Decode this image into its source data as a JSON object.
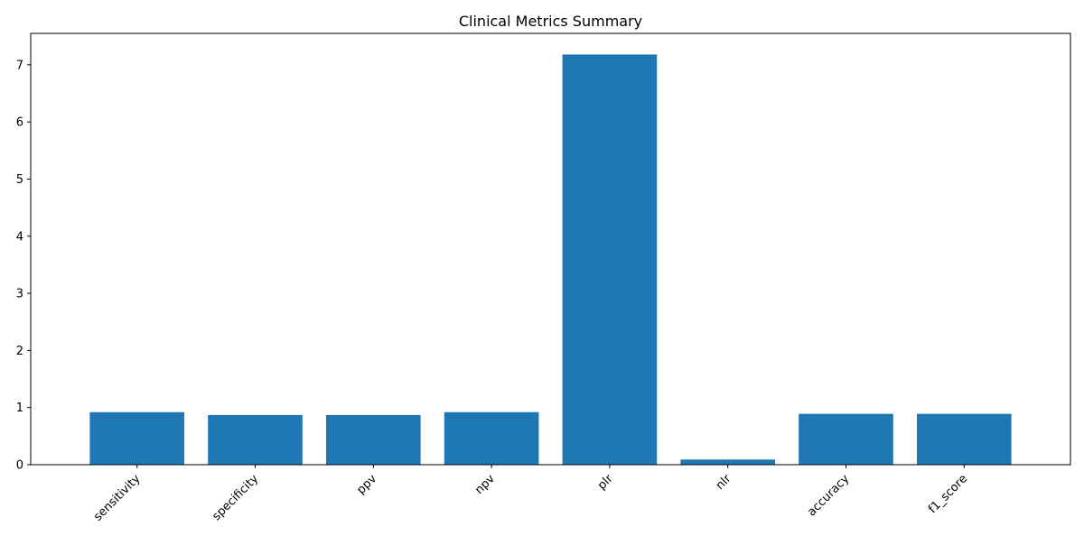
{
  "chart_data": {
    "type": "bar",
    "title": "Clinical Metrics Summary",
    "xlabel": "",
    "ylabel": "",
    "categories": [
      "sensitivity",
      "specificity",
      "ppv",
      "npv",
      "plr",
      "nlr",
      "accuracy",
      "f1_score"
    ],
    "values": [
      0.92,
      0.87,
      0.87,
      0.92,
      7.18,
      0.09,
      0.89,
      0.89
    ],
    "ylim": [
      0,
      7.55
    ],
    "yticks": [
      0,
      1,
      2,
      3,
      4,
      5,
      6,
      7
    ],
    "bar_color": "#1f77b4",
    "grid": false,
    "legend": "none"
  }
}
